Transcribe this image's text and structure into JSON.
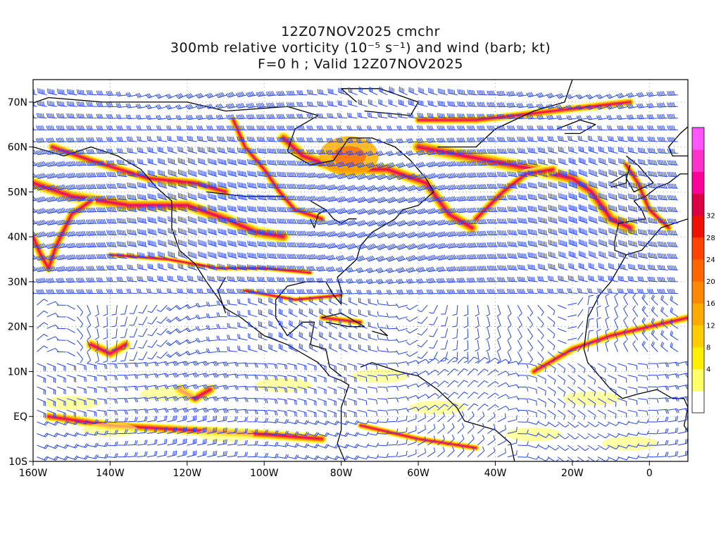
{
  "title": {
    "line1": "12Z07NOV2025 cmchr",
    "line2": "300mb relative vorticity (10⁻⁵ s⁻¹) and wind (barb; kt)",
    "line3": "F=0 h ; Valid 12Z07NOV2025"
  },
  "map": {
    "lon_range": [
      -160,
      10
    ],
    "lat_range": [
      -10,
      75
    ],
    "lon_ticks": [
      "160W",
      "140W",
      "120W",
      "100W",
      "80W",
      "60W",
      "40W",
      "20W",
      "0"
    ],
    "lat_ticks": [
      "10S",
      "EQ",
      "10N",
      "20N",
      "30N",
      "40N",
      "50N",
      "60N",
      "70N"
    ],
    "barb_color": "#2244ee",
    "coast_color": "#000000"
  },
  "colorbar": {
    "labels": [
      "4",
      "8",
      "12",
      "16",
      "20",
      "24",
      "28",
      "32"
    ],
    "colors": [
      "#ffffff",
      "#ffff66",
      "#ffee00",
      "#ffcc00",
      "#ffaa00",
      "#ff8800",
      "#ff6600",
      "#ff4400",
      "#ee1100",
      "#dd0044",
      "#ff0099",
      "#ff33cc",
      "#ff55ff"
    ]
  }
}
